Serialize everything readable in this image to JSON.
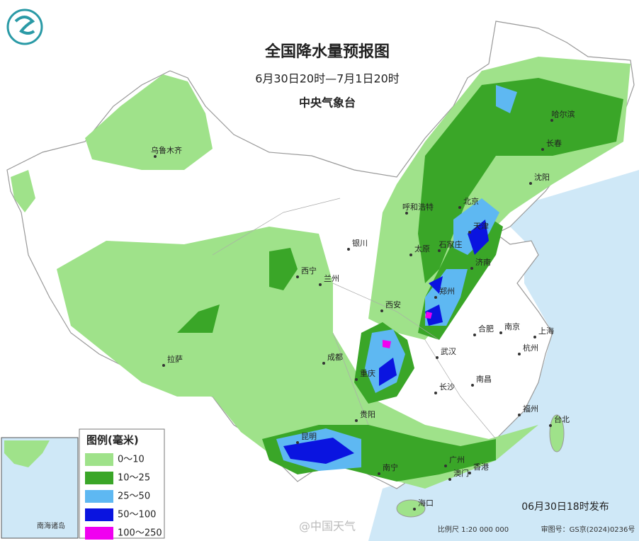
{
  "header": {
    "title": "全国降水量预报图",
    "period": "6月30日20时—7月1日20时",
    "agency": "中央气象台"
  },
  "cities": [
    "乌鲁木齐",
    "哈尔滨",
    "长春",
    "沈阳",
    "呼和浩特",
    "北京",
    "天津",
    "银川",
    "太原",
    "石家庄",
    "西宁",
    "兰州",
    "济南",
    "郑州",
    "西安",
    "合肥",
    "南京",
    "上海",
    "拉萨",
    "成都",
    "武汉",
    "杭州",
    "重庆",
    "南昌",
    "长沙",
    "福州",
    "台北",
    "贵阳",
    "昆明",
    "广州",
    "南宁",
    "澳门",
    "香港",
    "海口"
  ],
  "legend": {
    "title": "图例(毫米)",
    "items": [
      {
        "label": "0～10",
        "color": "#9fe28a"
      },
      {
        "label": "10～25",
        "color": "#3aa628"
      },
      {
        "label": "25～50",
        "color": "#5eb8f2"
      },
      {
        "label": "50～100",
        "color": "#0a14e0"
      },
      {
        "label": "100～250",
        "color": "#f000f0"
      }
    ]
  },
  "inset": {
    "label": "南海诸岛"
  },
  "footer": {
    "issued": "06月30日18时发布",
    "scale": "比例尺 1:20 000 000",
    "map_number": "审图号：GS京(2024)0236号",
    "watermark": "@中国天气"
  }
}
